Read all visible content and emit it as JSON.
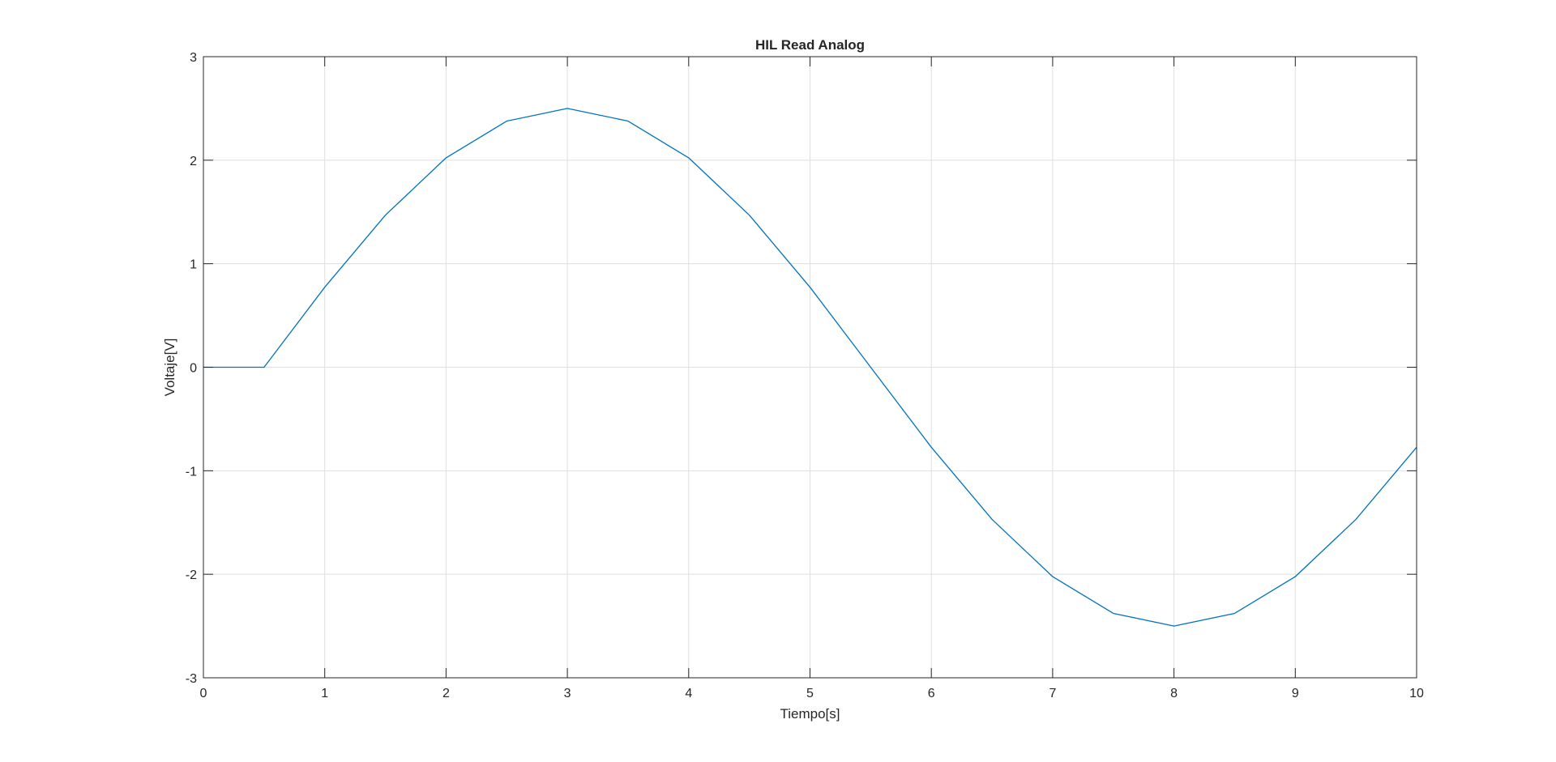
{
  "chart_data": {
    "type": "line",
    "title": "HIL Read Analog",
    "xlabel": "Tiempo[s]",
    "ylabel": "Voltaje[V]",
    "xlim": [
      0,
      10
    ],
    "ylim": [
      -3,
      3
    ],
    "xticks": [
      0,
      1,
      2,
      3,
      4,
      5,
      6,
      7,
      8,
      9,
      10
    ],
    "yticks": [
      -3,
      -2,
      -1,
      0,
      1,
      2,
      3
    ],
    "grid": true,
    "line_color": "#0072BD",
    "series": [
      {
        "x": [
          0,
          0.5,
          1,
          1.5,
          2,
          2.5,
          3,
          3.5,
          4,
          4.5,
          5,
          5.5,
          6,
          6.5,
          7,
          7.5,
          8,
          8.5,
          9,
          9.5,
          10
        ],
        "values": [
          0,
          0,
          0.773,
          1.469,
          2.023,
          2.378,
          2.5,
          2.378,
          2.023,
          1.469,
          0.773,
          0,
          -0.773,
          -1.469,
          -2.023,
          -2.378,
          -2.5,
          -2.378,
          -2.023,
          -1.469,
          -0.773
        ]
      }
    ]
  }
}
